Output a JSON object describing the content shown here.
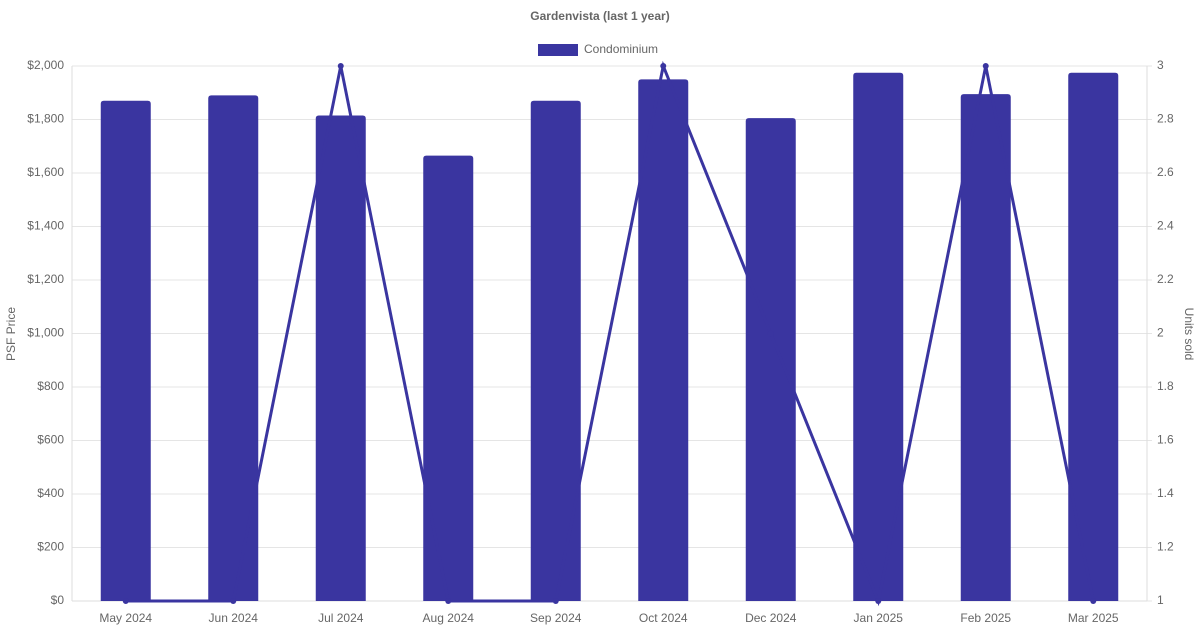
{
  "chart_data": {
    "type": "bar-line",
    "title": "Gardenvista (last 1 year)",
    "categories": [
      "May 2024",
      "Jun 2024",
      "Jul 2024",
      "Aug 2024",
      "Sep 2024",
      "Oct 2024",
      "Dec 2024",
      "Jan 2025",
      "Feb 2025",
      "Mar 2025"
    ],
    "series": [
      {
        "name": "Condominium",
        "type": "bar",
        "color": "#3a35a0",
        "values": [
          1870,
          1890,
          1815,
          1665,
          1870,
          1950,
          1805,
          1975,
          1895,
          1975
        ]
      },
      {
        "type": "line",
        "axis": "y2",
        "color": "#3a35a0",
        "values": [
          1,
          1,
          3,
          1,
          1,
          3,
          2,
          1,
          3,
          1
        ]
      }
    ],
    "y_label": "PSF Price",
    "y2_label": "Units sold",
    "ylim": [
      0,
      2000
    ],
    "yticks": [
      {
        "value": 0,
        "label": "$0"
      },
      {
        "value": 200,
        "label": "$200"
      },
      {
        "value": 400,
        "label": "$400"
      },
      {
        "value": 600,
        "label": "$600"
      },
      {
        "value": 800,
        "label": "$800"
      },
      {
        "value": 1000,
        "label": "$1,000"
      },
      {
        "value": 1200,
        "label": "$1,200"
      },
      {
        "value": 1400,
        "label": "$1,400"
      },
      {
        "value": 1600,
        "label": "$1,600"
      },
      {
        "value": 1800,
        "label": "$1,800"
      },
      {
        "value": 2000,
        "label": "$2,000"
      }
    ],
    "y2lim": [
      1,
      3
    ],
    "y2ticks": [
      1,
      1.2,
      1.4,
      1.6,
      1.8,
      2,
      2.2,
      2.4,
      2.6,
      2.8,
      3
    ],
    "grid": true,
    "legend": "top"
  }
}
